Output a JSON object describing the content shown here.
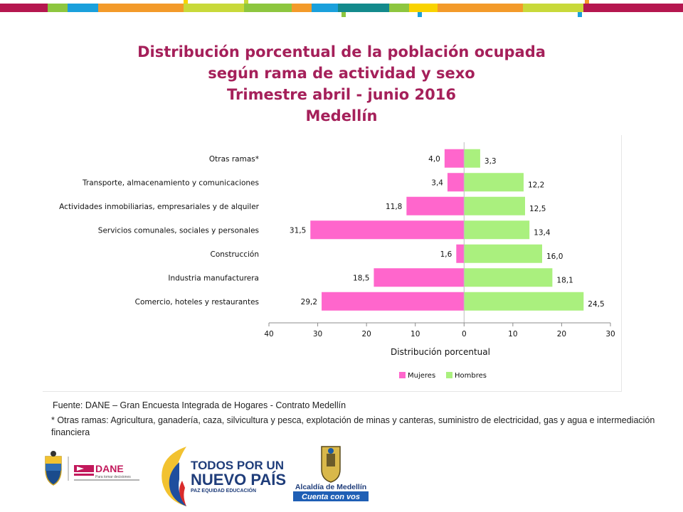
{
  "title": {
    "line1": "Distribución porcentual de la población ocupada",
    "line2": "según rama de actividad y sexo",
    "line3": "Trimestre abril - junio 2016",
    "line4": "Medellín"
  },
  "colors": {
    "title": "#a5205a",
    "mujeres": "#ff66cc",
    "hombres": "#aaf07e"
  },
  "chart_data": {
    "type": "bar",
    "orientation": "horizontal-diverging",
    "categories": [
      "Otras ramas*",
      "Transporte, almacenamiento y comunicaciones",
      "Actividades inmobiliarias, empresariales y de alquiler",
      "Servicios comunales, sociales y personales",
      "Construcción",
      "Industria manufacturera",
      "Comercio, hoteles y restaurantes"
    ],
    "series": [
      {
        "name": "Mujeres",
        "values": [
          4.0,
          3.4,
          11.8,
          31.5,
          1.6,
          18.5,
          29.2
        ],
        "labels": [
          "4,0",
          "3,4",
          "11,8",
          "31,5",
          "1,6",
          "18,5",
          "29,2"
        ],
        "color": "#ff66cc",
        "direction": "left"
      },
      {
        "name": "Hombres",
        "values": [
          3.3,
          12.2,
          12.5,
          13.4,
          16.0,
          18.1,
          24.5
        ],
        "labels": [
          "3,3",
          "12,2",
          "12,5",
          "13,4",
          "16,0",
          "18,1",
          "24,5"
        ],
        "color": "#aaf07e",
        "direction": "right"
      }
    ],
    "xlim": [
      -40,
      30
    ],
    "xticks": [
      -40,
      -30,
      -20,
      -10,
      0,
      10,
      20,
      30
    ],
    "xtick_labels": [
      "40",
      "30",
      "20",
      "10",
      "0",
      "10",
      "20",
      "30"
    ],
    "xlabel": "Distribución porcentual",
    "legend_placement": "bottom"
  },
  "footer": {
    "source": "Fuente: DANE – Gran Encuesta Integrada de Hogares - Contrato Medellín",
    "note": "* Otras ramas: Agricultura, ganadería, caza, silvicultura y pesca, explotación de minas y canteras, suministro de electricidad, gas y agua e intermediación financiera"
  },
  "logos": {
    "dane": "DANE",
    "dane_tagline": "Para tomar decisiones",
    "gov_line1": "TODOS POR UN",
    "gov_line2": "NUEVO PAÍS",
    "gov_line3": "PAZ  EQUIDAD  EDUCACIÓN",
    "alcaldia_line1": "Alcaldía de Medellín",
    "alcaldia_line2": "Cuenta con vos"
  }
}
